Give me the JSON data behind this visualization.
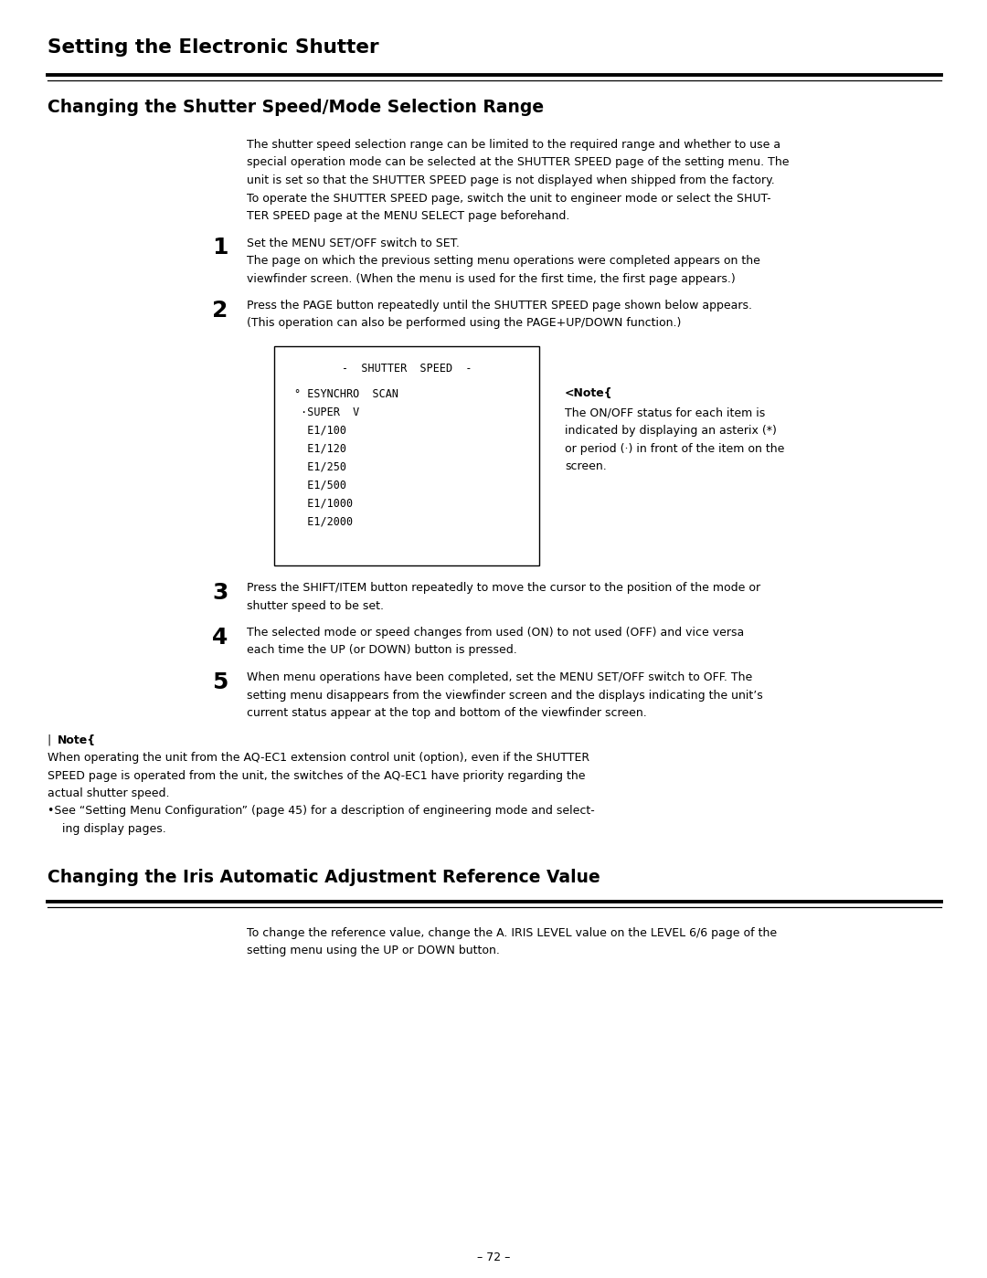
{
  "page_title": "Setting the Electronic Shutter",
  "section1_title": "Changing the Shutter Speed/Mode Selection Range",
  "section1_intro_lines": [
    "The shutter speed selection range can be limited to the required range and whether to use a",
    "special operation mode can be selected at the SHUTTER SPEED page of the setting menu. The",
    "unit is set so that the SHUTTER SPEED page is not displayed when shipped from the factory.",
    "To operate the SHUTTER SPEED page, switch the unit to engineer mode or select the SHUT-",
    "TER SPEED page at the MENU SELECT page beforehand."
  ],
  "step1_bold": "Set the MENU SET/OFF switch to SET.",
  "step1_lines": [
    "The page on which the previous setting menu operations were completed appears on the",
    "viewfinder screen. (When the menu is used for the first time, the first page appears.)"
  ],
  "step2_bold": "Press the PAGE button repeatedly until the SHUTTER SPEED page shown below appears.",
  "step2_lines": [
    "(This operation can also be performed using the PAGE+UP/DOWN function.)"
  ],
  "menu_title": "-  SHUTTER  SPEED  -",
  "menu_items": [
    "° ESYNCHRO  SCAN",
    " ·SUPER  V",
    "  E1/100",
    "  E1/120",
    "  E1/250",
    "  E1/500",
    "  E1/1000",
    "  E1/2000"
  ],
  "note_side_title": "<Note{",
  "note_side_lines": [
    "The ON/OFF status for each item is",
    "indicated by displaying an asterix (*)",
    "or period (·) in front of the item on the",
    "screen."
  ],
  "step3_lines": [
    "Press the SHIFT/ITEM button repeatedly to move the cursor to the position of the mode or",
    "shutter speed to be set."
  ],
  "step4_lines": [
    "The selected mode or speed changes from used (ON) to not used (OFF) and vice versa",
    "each time the UP (or DOWN) button is pressed."
  ],
  "step5_lines": [
    "When menu operations have been completed, set the MENU SET/OFF switch to OFF. The",
    "setting menu disappears from the viewfinder screen and the displays indicating the unit’s",
    "current status appear at the top and bottom of the viewfinder screen."
  ],
  "bottom_note_lines": [
    "When operating the unit from the AQ-EC1 extension control unit (option), even if the SHUTTER",
    "SPEED page is operated from the unit, the switches of the AQ-EC1 have priority regarding the",
    "actual shutter speed."
  ],
  "bottom_note_bullet1": "•See “Setting Menu Configuration” (page 45) for a description of engineering mode and select-",
  "bottom_note_bullet2": "  ing display pages.",
  "section2_title": "Changing the Iris Automatic Adjustment Reference Value",
  "section2_lines": [
    "To change the reference value, change the A. IRIS LEVEL value on the LEVEL 6/6 page of the",
    "setting menu using the UP or DOWN button."
  ],
  "page_number": "– 72 –",
  "bg_color": "#ffffff",
  "text_color": "#000000"
}
